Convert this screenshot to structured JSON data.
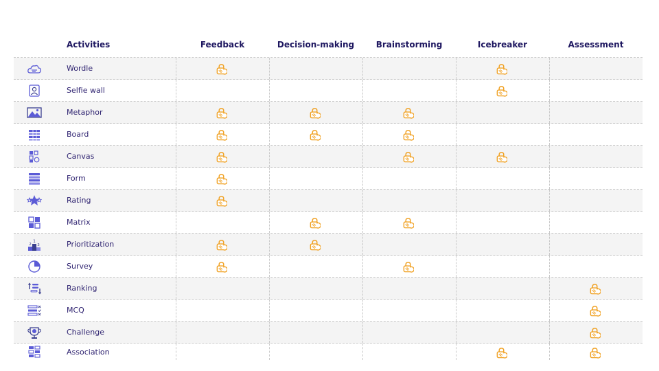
{
  "header": {
    "activities": "Activities",
    "categories": [
      "Feedback",
      "Decision-making",
      "Brainstorming",
      "Icebreaker",
      "Assessment"
    ]
  },
  "badge_icon": "orange-lock-badge-icon",
  "colors": {
    "badge": "#f0a020",
    "icon": "#5b5bd6",
    "text": "#2b1f6e",
    "stripe": "#f4f4f4"
  },
  "rows": [
    {
      "name": "Wordle",
      "icon": "cloud-icon",
      "marks": [
        true,
        false,
        false,
        true,
        false
      ]
    },
    {
      "name": "Selfie wall",
      "icon": "selfie-icon",
      "marks": [
        false,
        false,
        false,
        true,
        false
      ]
    },
    {
      "name": "Metaphor",
      "icon": "image-icon",
      "marks": [
        true,
        true,
        true,
        false,
        false
      ]
    },
    {
      "name": "Board",
      "icon": "board-icon",
      "marks": [
        true,
        true,
        true,
        false,
        false
      ]
    },
    {
      "name": "Canvas",
      "icon": "canvas-icon",
      "marks": [
        true,
        false,
        true,
        true,
        false
      ]
    },
    {
      "name": "Form",
      "icon": "form-icon",
      "marks": [
        true,
        false,
        false,
        false,
        false
      ]
    },
    {
      "name": "Rating",
      "icon": "stars-icon",
      "marks": [
        true,
        false,
        false,
        false,
        false
      ]
    },
    {
      "name": "Matrix",
      "icon": "matrix-icon",
      "marks": [
        false,
        true,
        true,
        false,
        false
      ]
    },
    {
      "name": "Prioritization",
      "icon": "podium-icon",
      "marks": [
        true,
        true,
        false,
        false,
        false
      ]
    },
    {
      "name": "Survey",
      "icon": "pie-icon",
      "marks": [
        true,
        false,
        true,
        false,
        false
      ]
    },
    {
      "name": "Ranking",
      "icon": "ranking-icon",
      "marks": [
        false,
        false,
        false,
        false,
        true
      ]
    },
    {
      "name": "MCQ",
      "icon": "mcq-icon",
      "marks": [
        false,
        false,
        false,
        false,
        true
      ]
    },
    {
      "name": "Challenge",
      "icon": "trophy-icon",
      "marks": [
        false,
        false,
        false,
        false,
        true
      ]
    },
    {
      "name": "Association",
      "icon": "association-icon",
      "marks": [
        false,
        false,
        false,
        true,
        true
      ]
    }
  ]
}
